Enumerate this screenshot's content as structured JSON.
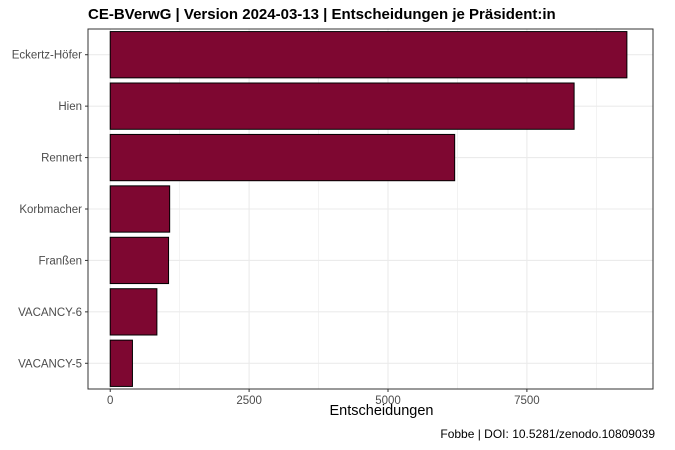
{
  "chart_data": {
    "type": "bar",
    "orientation": "horizontal",
    "title": "CE-BVerwG | Version 2024-03-13 | Entscheidungen je Präsident:in",
    "xlabel": "Entscheidungen",
    "ylabel": "",
    "caption": "Fobbe | DOI: 10.5281/zenodo.10809039",
    "categories": [
      "Eckertz-Höfer",
      "Hien",
      "Rennert",
      "Korbmacher",
      "Franßen",
      "VACANCY-6",
      "VACANCY-5"
    ],
    "values": [
      9300,
      8350,
      6200,
      1070,
      1050,
      840,
      400
    ],
    "xlim": [
      -400,
      9770
    ],
    "xticks": [
      0,
      2500,
      5000,
      7500
    ],
    "xtick_labels": [
      "0",
      "2500",
      "5000",
      "7500"
    ],
    "grid": true,
    "colors": {
      "bar_fill": "#7e0731",
      "bar_stroke": "#000000",
      "grid": "#ebebeb",
      "panel_border": "#333333"
    }
  }
}
